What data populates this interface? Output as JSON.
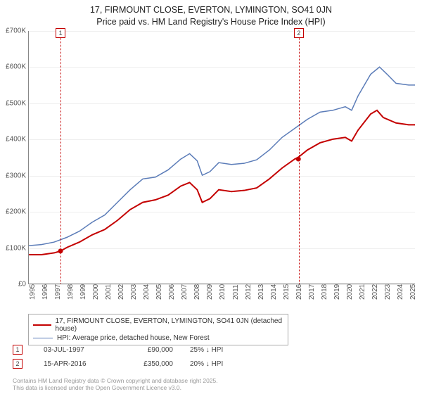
{
  "title": {
    "line1": "17, FIRMOUNT CLOSE, EVERTON, LYMINGTON, SO41 0JN",
    "line2": "Price paid vs. HM Land Registry's House Price Index (HPI)",
    "fontsize": 12.5,
    "color": "#222222"
  },
  "chart": {
    "type": "line",
    "background_color": "#ffffff",
    "grid_color": "#eeeeee",
    "axis_color": "#888888",
    "ylim": [
      0,
      700000
    ],
    "ytick_step": 100000,
    "ytick_labels": [
      "£0",
      "£100K",
      "£200K",
      "£300K",
      "£400K",
      "£500K",
      "£600K",
      "£700K"
    ],
    "x_start": 1995,
    "x_end": 2025.5,
    "xtick_labels": [
      "1995",
      "1996",
      "1997",
      "1998",
      "1999",
      "2000",
      "2001",
      "2002",
      "2003",
      "2004",
      "2005",
      "2006",
      "2007",
      "2008",
      "2009",
      "2010",
      "2011",
      "2012",
      "2013",
      "2014",
      "2015",
      "2016",
      "2017",
      "2018",
      "2019",
      "2020",
      "2021",
      "2022",
      "2023",
      "2024",
      "2025"
    ],
    "series": [
      {
        "name": "property",
        "label": "17, FIRMOUNT CLOSE, EVERTON, LYMINGTON, SO41 0JN (detached house)",
        "color": "#c40000",
        "stroke_width": 2,
        "points": [
          [
            1995.0,
            80000
          ],
          [
            1996.0,
            80000
          ],
          [
            1997.0,
            85000
          ],
          [
            1997.5,
            90000
          ],
          [
            1998.0,
            100000
          ],
          [
            1999.0,
            115000
          ],
          [
            2000.0,
            135000
          ],
          [
            2001.0,
            150000
          ],
          [
            2002.0,
            175000
          ],
          [
            2003.0,
            205000
          ],
          [
            2004.0,
            225000
          ],
          [
            2005.0,
            232000
          ],
          [
            2006.0,
            245000
          ],
          [
            2007.0,
            270000
          ],
          [
            2007.7,
            280000
          ],
          [
            2008.3,
            260000
          ],
          [
            2008.7,
            225000
          ],
          [
            2009.3,
            235000
          ],
          [
            2010.0,
            260000
          ],
          [
            2011.0,
            255000
          ],
          [
            2012.0,
            258000
          ],
          [
            2013.0,
            265000
          ],
          [
            2014.0,
            290000
          ],
          [
            2015.0,
            320000
          ],
          [
            2016.0,
            345000
          ],
          [
            2016.29,
            350000
          ],
          [
            2017.0,
            370000
          ],
          [
            2018.0,
            390000
          ],
          [
            2019.0,
            400000
          ],
          [
            2020.0,
            405000
          ],
          [
            2020.5,
            395000
          ],
          [
            2021.0,
            425000
          ],
          [
            2022.0,
            470000
          ],
          [
            2022.5,
            480000
          ],
          [
            2023.0,
            460000
          ],
          [
            2024.0,
            445000
          ],
          [
            2025.0,
            440000
          ],
          [
            2025.5,
            440000
          ]
        ]
      },
      {
        "name": "hpi",
        "label": "HPI: Average price, detached house, New Forest",
        "color": "#5b7cb8",
        "stroke_width": 1.5,
        "points": [
          [
            1995.0,
            105000
          ],
          [
            1996.0,
            108000
          ],
          [
            1997.0,
            115000
          ],
          [
            1998.0,
            128000
          ],
          [
            1999.0,
            145000
          ],
          [
            2000.0,
            170000
          ],
          [
            2001.0,
            190000
          ],
          [
            2002.0,
            225000
          ],
          [
            2003.0,
            260000
          ],
          [
            2004.0,
            290000
          ],
          [
            2005.0,
            295000
          ],
          [
            2006.0,
            315000
          ],
          [
            2007.0,
            345000
          ],
          [
            2007.7,
            360000
          ],
          [
            2008.3,
            340000
          ],
          [
            2008.7,
            300000
          ],
          [
            2009.3,
            310000
          ],
          [
            2010.0,
            335000
          ],
          [
            2011.0,
            330000
          ],
          [
            2012.0,
            333000
          ],
          [
            2013.0,
            343000
          ],
          [
            2014.0,
            370000
          ],
          [
            2015.0,
            405000
          ],
          [
            2016.0,
            430000
          ],
          [
            2017.0,
            455000
          ],
          [
            2018.0,
            475000
          ],
          [
            2019.0,
            480000
          ],
          [
            2020.0,
            490000
          ],
          [
            2020.5,
            480000
          ],
          [
            2021.0,
            520000
          ],
          [
            2022.0,
            580000
          ],
          [
            2022.7,
            600000
          ],
          [
            2023.3,
            580000
          ],
          [
            2024.0,
            555000
          ],
          [
            2025.0,
            550000
          ],
          [
            2025.5,
            550000
          ]
        ]
      }
    ]
  },
  "markers": [
    {
      "id": "1",
      "year": 1997.5,
      "color": "#c40000",
      "date": "03-JUL-1997",
      "price": "£90,000",
      "diff": "25% ↓ HPI"
    },
    {
      "id": "2",
      "year": 2016.29,
      "color": "#c40000",
      "date": "15-APR-2016",
      "price": "£350,000",
      "diff": "20% ↓ HPI"
    }
  ],
  "footer": {
    "line1": "Contains HM Land Registry data © Crown copyright and database right 2025.",
    "line2": "This data is licensed under the Open Government Licence v3.0.",
    "color": "#999999"
  },
  "legend": {
    "border_color": "#aaaaaa"
  }
}
